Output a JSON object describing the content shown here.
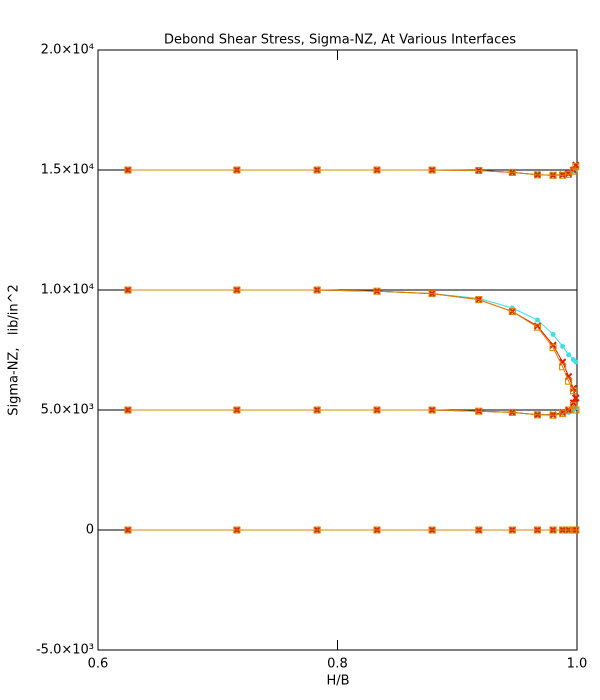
{
  "chart_data": {
    "type": "line",
    "title": "Debond Shear Stress, Sigma-NZ, At Various Interfaces",
    "x_label": "H/B",
    "y_label": "Sigma-NZ,   lib/in^2",
    "xlim": [
      0.6,
      1.0
    ],
    "xticks": [
      0.6,
      0.8,
      {
        "value": 1,
        "label": "1.0"
      }
    ],
    "ylim": [
      -5000,
      20000
    ],
    "yticks": [
      {
        "value": -5000,
        "label": "-5.0×10³"
      },
      0,
      {
        "value": 5000,
        "label": "5.0×10³"
      },
      {
        "value": 10000,
        "label": "1.0×10⁴"
      },
      {
        "value": 15000,
        "label": "1.5×10⁴"
      },
      {
        "value": 20000,
        "label": "2.0×10⁴"
      }
    ],
    "hlines": [
      0,
      5000,
      10000,
      15000
    ],
    "hline_color": "#000000",
    "x": [
      0.625,
      0.716,
      0.783,
      0.833,
      0.879,
      0.918,
      0.946,
      0.967,
      0.98,
      0.988,
      0.993,
      0.997,
      0.999
    ],
    "series": [
      {
        "color": "#40e0e0",
        "marker": "circle",
        "values": [
          15000,
          15000,
          15000,
          15000,
          15000,
          14980,
          14900,
          14800,
          14780,
          14800,
          14850,
          14950,
          15000
        ]
      },
      {
        "color": "#e02000",
        "marker": "x",
        "values": [
          15000,
          15000,
          15000,
          15000,
          15000,
          14980,
          14900,
          14800,
          14780,
          14800,
          14850,
          15000,
          15200
        ]
      },
      {
        "color": "#e08000",
        "marker": "square",
        "values": [
          15000,
          15000,
          15000,
          15000,
          15000,
          14980,
          14900,
          14800,
          14780,
          14780,
          14820,
          14950,
          15150
        ]
      },
      {
        "color": "#40e0e0",
        "marker": "circle",
        "values": [
          10000,
          10000,
          10000,
          9950,
          9850,
          9650,
          9250,
          8750,
          8150,
          7650,
          7300,
          7100,
          7000
        ]
      },
      {
        "color": "#e02000",
        "marker": "x",
        "values": [
          10000,
          10000,
          10000,
          9950,
          9850,
          9600,
          9100,
          8500,
          7700,
          7000,
          6400,
          5900,
          5500
        ]
      },
      {
        "color": "#e08000",
        "marker": "square",
        "values": [
          10000,
          10000,
          10000,
          9950,
          9850,
          9600,
          9100,
          8450,
          7600,
          6800,
          6200,
          5800,
          5000
        ]
      },
      {
        "color": "#40e0e0",
        "marker": "circle",
        "values": [
          5000,
          5000,
          5000,
          5000,
          5000,
          4950,
          4900,
          4800,
          4800,
          4850,
          4900,
          5000,
          5100
        ]
      },
      {
        "color": "#e02000",
        "marker": "x",
        "values": [
          5000,
          5000,
          5000,
          5000,
          5000,
          4950,
          4900,
          4800,
          4800,
          4900,
          5000,
          5300,
          5500
        ]
      },
      {
        "color": "#e08000",
        "marker": "square",
        "values": [
          5000,
          5000,
          5000,
          5000,
          5000,
          4950,
          4900,
          4800,
          4780,
          4850,
          5000,
          5200,
          5000
        ]
      },
      {
        "color": "#40e0e0",
        "marker": "circle",
        "values": [
          0,
          0,
          0,
          0,
          0,
          0,
          0,
          0,
          0,
          0,
          0,
          0,
          0
        ]
      },
      {
        "color": "#e02000",
        "marker": "x",
        "values": [
          0,
          0,
          0,
          0,
          0,
          0,
          0,
          0,
          0,
          0,
          0,
          0,
          0
        ]
      },
      {
        "color": "#e08000",
        "marker": "square",
        "values": [
          0,
          0,
          0,
          0,
          0,
          0,
          0,
          0,
          0,
          0,
          0,
          0,
          0
        ]
      }
    ]
  }
}
